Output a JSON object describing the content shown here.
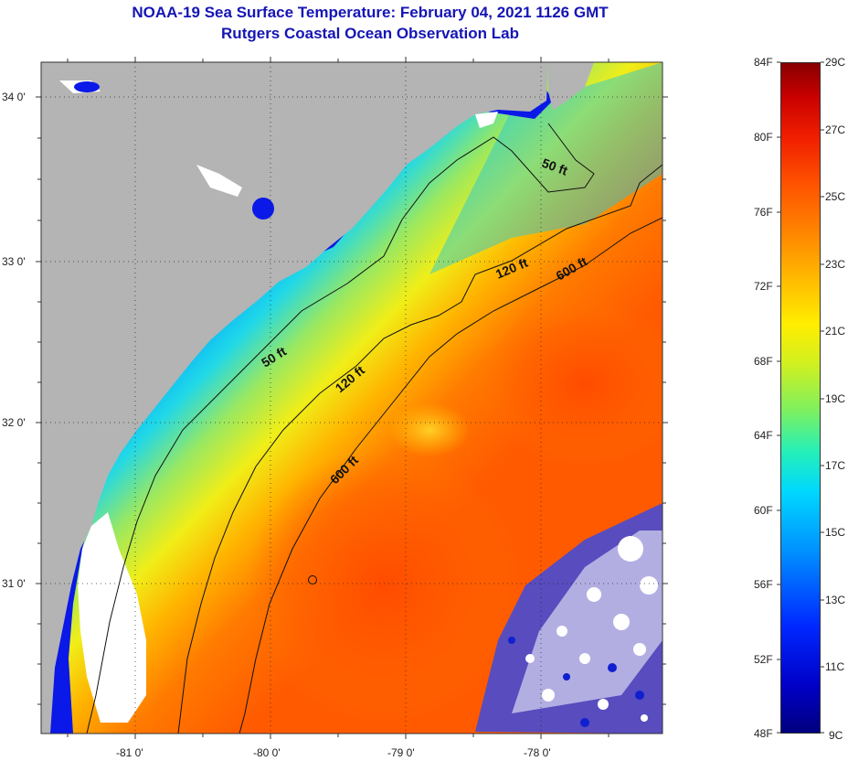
{
  "title": {
    "line1": "NOAA-19 Sea Surface Temperature:  February 04, 2021 1126 GMT",
    "line2": "Rutgers Coastal Ocean Observation Lab"
  },
  "axes": {
    "lon_labels": [
      "-81 0'",
      "-80 0'",
      "-79 0'",
      "-78 0'"
    ],
    "lat_labels": [
      "34 0'",
      "33 0'",
      "32 0'",
      "31 0'"
    ]
  },
  "contours": {
    "c50a": "50 ft",
    "c50b": "50 ft",
    "c120a": "120 ft",
    "c120b": "120 ft",
    "c600a": "600 ft",
    "c600b": "600 ft"
  },
  "colorbar": {
    "fahrenheit": [
      "84F",
      "80F",
      "76F",
      "72F",
      "68F",
      "64F",
      "60F",
      "56F",
      "52F",
      "48F"
    ],
    "celsius": [
      "29C",
      "27C",
      "25C",
      "23C",
      "21C",
      "19C",
      "17C",
      "15C",
      "13C",
      "11C",
      "9C"
    ]
  },
  "colors": {
    "land": "#b4b4b4",
    "cloud": "#ffffff",
    "title": "#1515b5",
    "cold": "#0a14e6",
    "warm": "#ff5a00"
  }
}
